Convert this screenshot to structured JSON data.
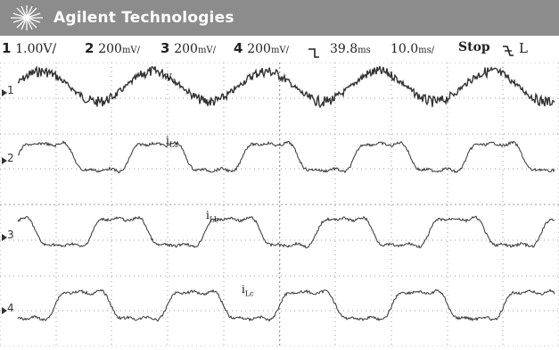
{
  "header": {
    "brand": "Agilent Technologies"
  },
  "status_bar": {
    "ch1": {
      "num": "1",
      "value": "1.00V/"
    },
    "ch2": {
      "num": "2",
      "value": "200",
      "unit": "mV/"
    },
    "ch3": {
      "num": "3",
      "value": "200",
      "unit": "mV/"
    },
    "ch4": {
      "num": "4",
      "value": "200",
      "unit": "mV/"
    },
    "trigger_icon": "trigger-edge-icon",
    "delay": {
      "value": "39.8",
      "unit": "ms"
    },
    "timebase": {
      "value": "10.0",
      "unit": "ms/"
    },
    "run_state": "Stop",
    "trigger_slope": "falling-edge-icon",
    "trigger_source": "L"
  },
  "traces": [
    {
      "channel": "1",
      "label": "v",
      "sub": "a"
    },
    {
      "channel": "2",
      "label": "i",
      "sub": "La"
    },
    {
      "channel": "3",
      "label": "i",
      "sub": "Lb"
    },
    {
      "channel": "4",
      "label": "i",
      "sub": "Lc"
    }
  ],
  "colors": {
    "header_bg": "#8c8c8c",
    "trace": "#333333",
    "grid": "#9a9a9a"
  }
}
